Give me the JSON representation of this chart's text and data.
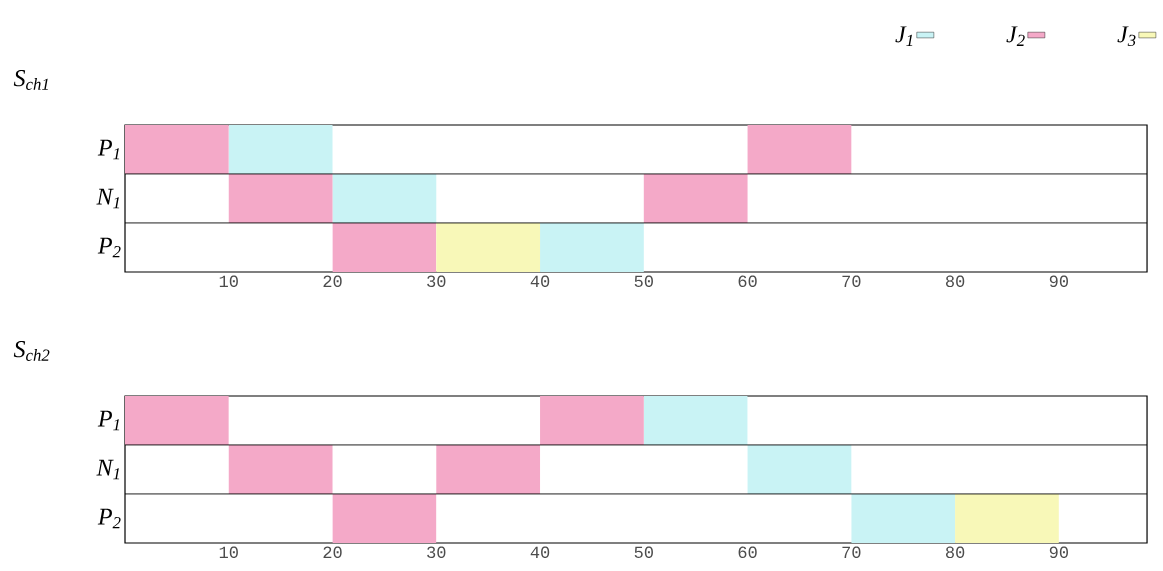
{
  "chart_data": [
    {
      "type": "bar",
      "orientation": "horizontal",
      "title": "S$_{ch1}$",
      "categories": [
        "P$_{1}$",
        "N$_{1}$",
        "P$_{2}$"
      ],
      "xlim": [
        0,
        98.5
      ],
      "xticks": [
        10,
        20,
        30,
        40,
        50,
        60,
        70,
        80,
        90
      ],
      "legend": "top right",
      "series": [
        {
          "name": "J$_{1}$",
          "color": "#c9f3f5",
          "base": [
            10,
            20,
            40
          ],
          "values": [
            10,
            10,
            10
          ]
        },
        {
          "name": "J$_{2}$",
          "color": "#f4a9c8",
          "base": [
            0,
            10,
            20
          ],
          "values": [
            10,
            10,
            10
          ]
        },
        {
          "name": "J$_{3}$",
          "color": "#f8f8b8",
          "base": [
            null,
            null,
            30
          ],
          "values": [
            null,
            null,
            10
          ]
        },
        {
          "color": "#f4a9c8",
          "base": [
            60,
            50,
            null
          ],
          "values": [
            10,
            10,
            null
          ]
        }
      ]
    },
    {
      "type": "bar",
      "orientation": "horizontal",
      "title": "S$_{ch2}$",
      "categories": [
        "P$_{1}$",
        "N$_{1}$",
        "P$_{2}$"
      ],
      "xlim": [
        0,
        98.5
      ],
      "xticks": [
        10,
        20,
        30,
        40,
        50,
        60,
        70,
        80,
        90
      ],
      "series": [
        {
          "color": "#c9f3f5",
          "base": [
            50,
            60,
            70
          ],
          "values": [
            10,
            10,
            10
          ]
        },
        {
          "color": "#f4a9c8",
          "base": [
            0,
            10,
            20
          ],
          "values": [
            10,
            10,
            10
          ]
        },
        {
          "color": "#f8f8b8",
          "base": [
            null,
            null,
            80
          ],
          "values": [
            null,
            null,
            10
          ]
        },
        {
          "color": "#f4a9c8",
          "base": [
            40,
            30,
            null
          ],
          "values": [
            10,
            10,
            null
          ]
        }
      ]
    }
  ]
}
